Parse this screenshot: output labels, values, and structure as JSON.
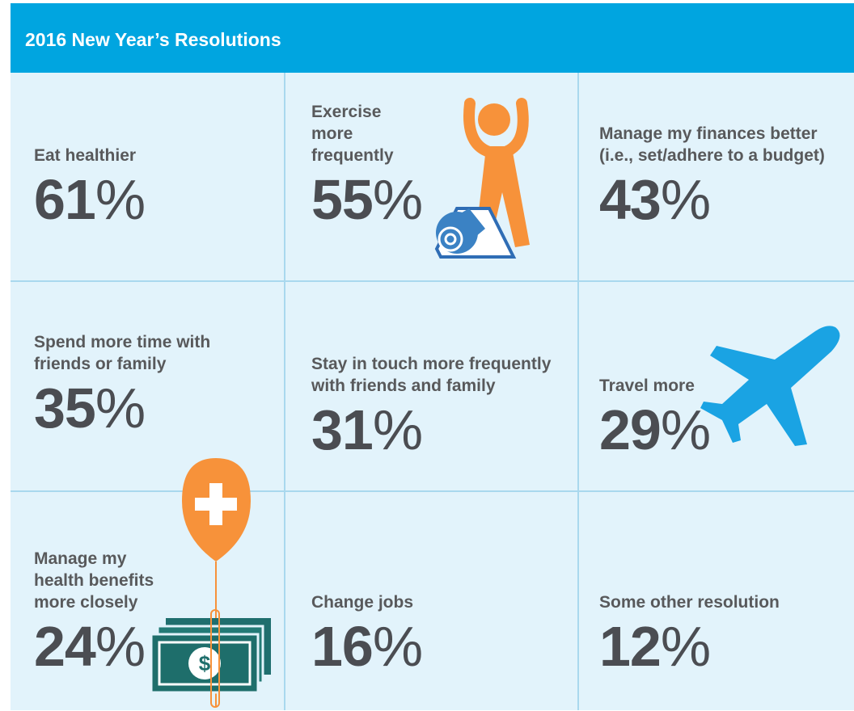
{
  "header": {
    "title": "2016 New Year’s Resolutions"
  },
  "unit": "%",
  "cells": [
    {
      "label": "Eat healthier",
      "value": 61
    },
    {
      "label": "Exercise more frequently",
      "value": 55
    },
    {
      "label": "Manage my finances better (i.e., set/adhere to a budget)",
      "value": 43
    },
    {
      "label": "Spend more time with friends or family",
      "value": 35
    },
    {
      "label": "Stay in touch more frequently with friends and family",
      "value": 31
    },
    {
      "label": "Travel more",
      "value": 29
    },
    {
      "label": "Manage my health benefits more closely",
      "value": 24
    },
    {
      "label": "Change jobs",
      "value": 16
    },
    {
      "label": "Some other resolution",
      "value": 12
    }
  ]
}
